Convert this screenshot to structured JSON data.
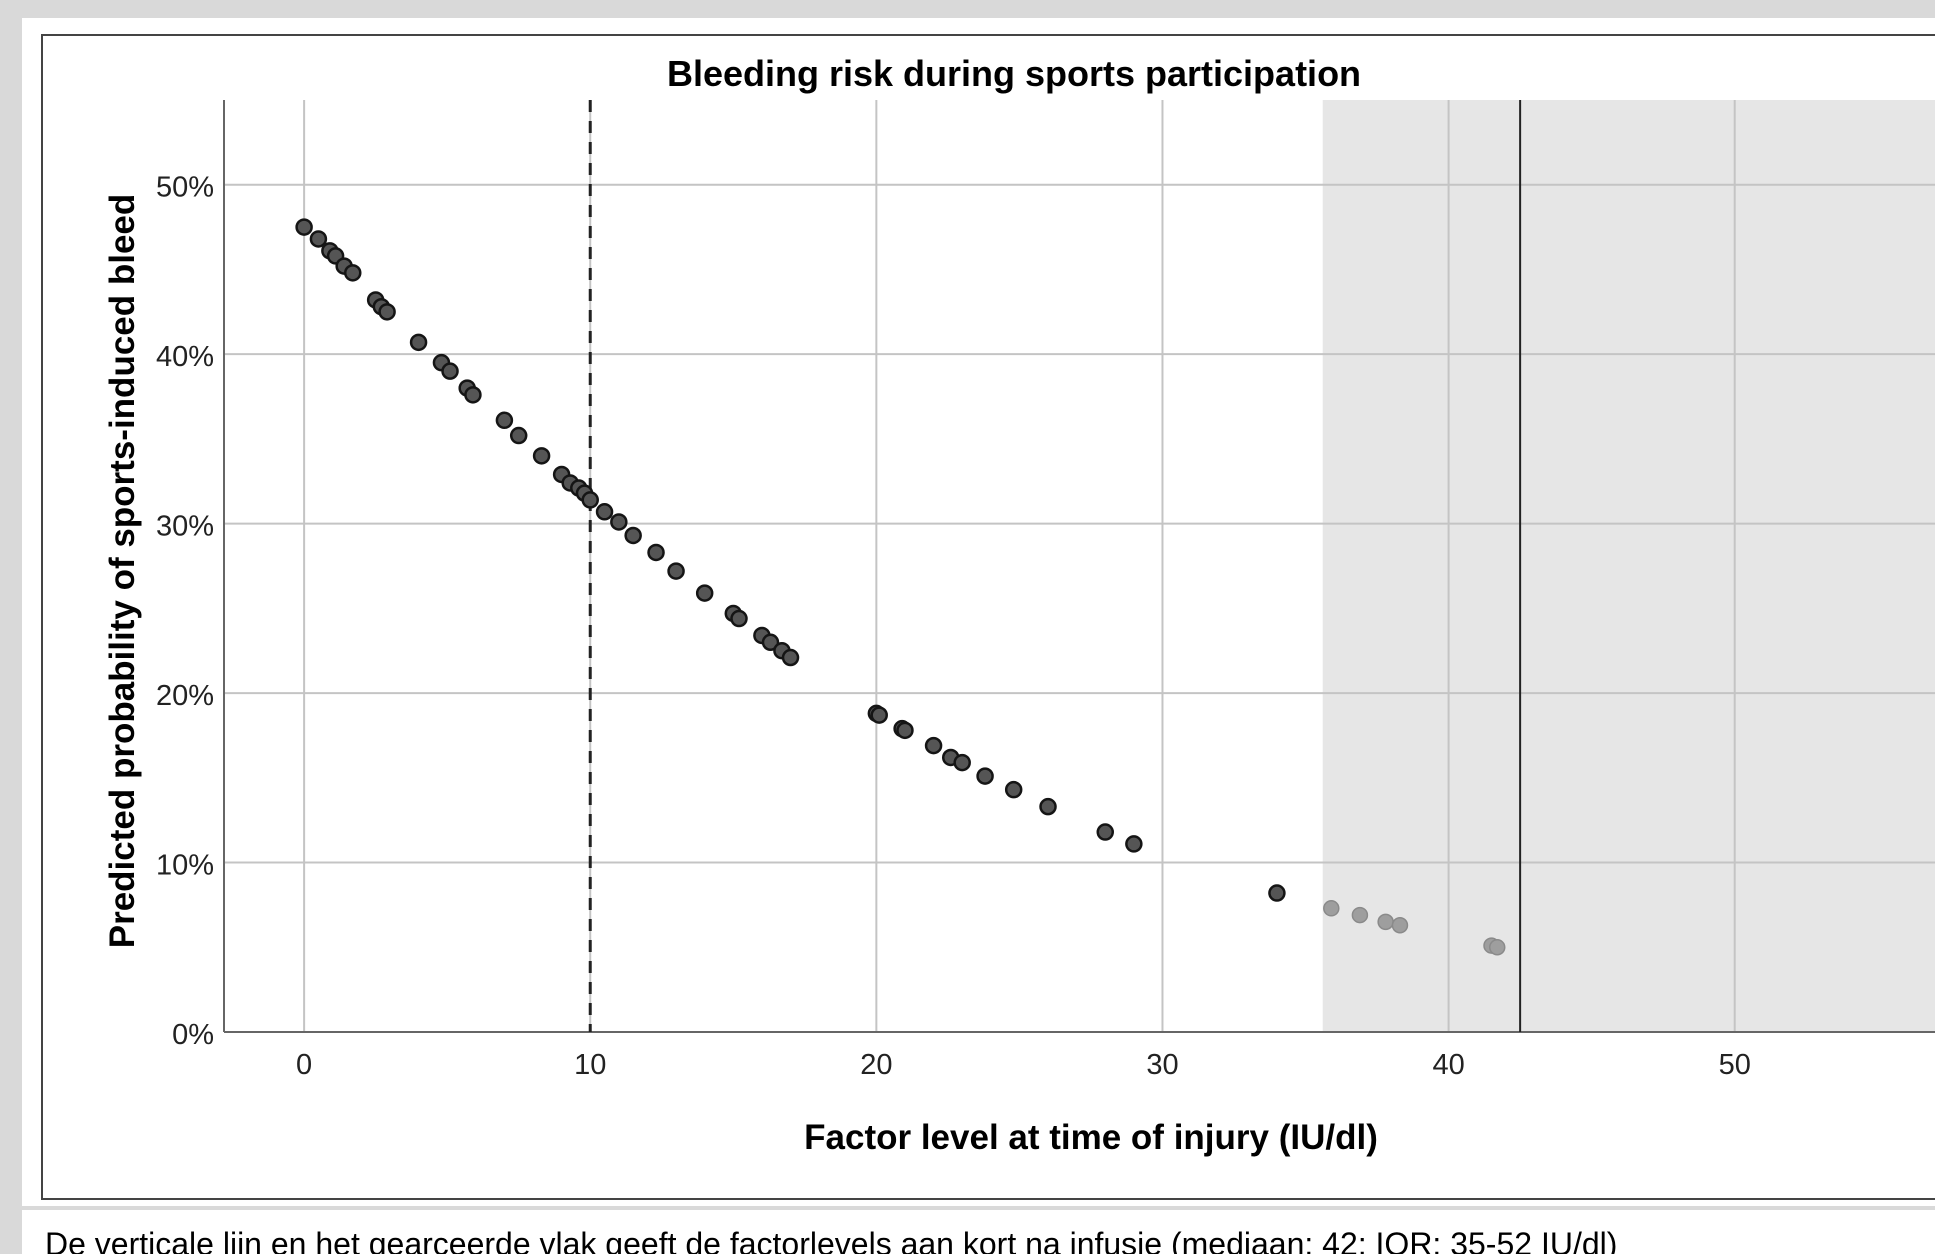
{
  "chart_data": {
    "type": "scatter",
    "title": "Bleeding risk during sports participation",
    "xlabel": "Factor level at time of injury (IU/dl)",
    "ylabel": "Predicted probability of sports-induced bleed",
    "xlim": [
      -2.8,
      57
    ],
    "ylim": [
      0,
      55
    ],
    "x_ticks": [
      0,
      10,
      20,
      30,
      40,
      50
    ],
    "x_tick_labels": [
      "0",
      "10",
      "20",
      "30",
      "40",
      "50"
    ],
    "y_ticks": [
      0,
      10,
      20,
      30,
      40,
      50
    ],
    "y_tick_labels": [
      "0%",
      "10%",
      "20%",
      "30%",
      "40%",
      "50%"
    ],
    "grid": true,
    "reference_lines": {
      "dashed_x": 10,
      "solid_x": 42.5,
      "shaded_x_range": [
        35.6,
        57
      ]
    },
    "series": [
      {
        "color": "#555555",
        "x": [
          0,
          0.5,
          0.9,
          1.1,
          1.4,
          1.7,
          2.5,
          2.7,
          2.9,
          4,
          4.8,
          5.1,
          5.7,
          5.9,
          7,
          7.5,
          8.3,
          9,
          9.3,
          9.6,
          9.8,
          10,
          10.5,
          11,
          11.5,
          12.3,
          13,
          14,
          15,
          15.2,
          16,
          16.3,
          16.7,
          17,
          20,
          20.1,
          20.9,
          21,
          22,
          22.6,
          23,
          23.8,
          24.8,
          26,
          28,
          29,
          34
        ],
        "y": [
          47.5,
          46.8,
          46.1,
          45.8,
          45.2,
          44.8,
          43.2,
          42.8,
          42.5,
          40.7,
          39.5,
          39,
          38,
          37.6,
          36.1,
          35.2,
          34,
          32.9,
          32.4,
          32.1,
          31.8,
          31.4,
          30.7,
          30.1,
          29.3,
          28.3,
          27.2,
          25.9,
          24.7,
          24.4,
          23.4,
          23,
          22.5,
          22.1,
          18.8,
          18.7,
          17.9,
          17.8,
          16.9,
          16.2,
          15.9,
          15.1,
          14.3,
          13.3,
          11.8,
          11.1,
          8.2
        ]
      },
      {
        "color": "#9e9e9e",
        "x": [
          35.9,
          36.9,
          37.8,
          38.3,
          41.5,
          41.7
        ],
        "y": [
          7.3,
          6.9,
          6.5,
          6.3,
          5.1,
          5.0
        ]
      }
    ]
  },
  "caption": "De verticale lijn en het gearceerde vlak geeft de factorlevels aan kort na infusie (mediaan: 42; IQR: 35-52 IU/dl)"
}
